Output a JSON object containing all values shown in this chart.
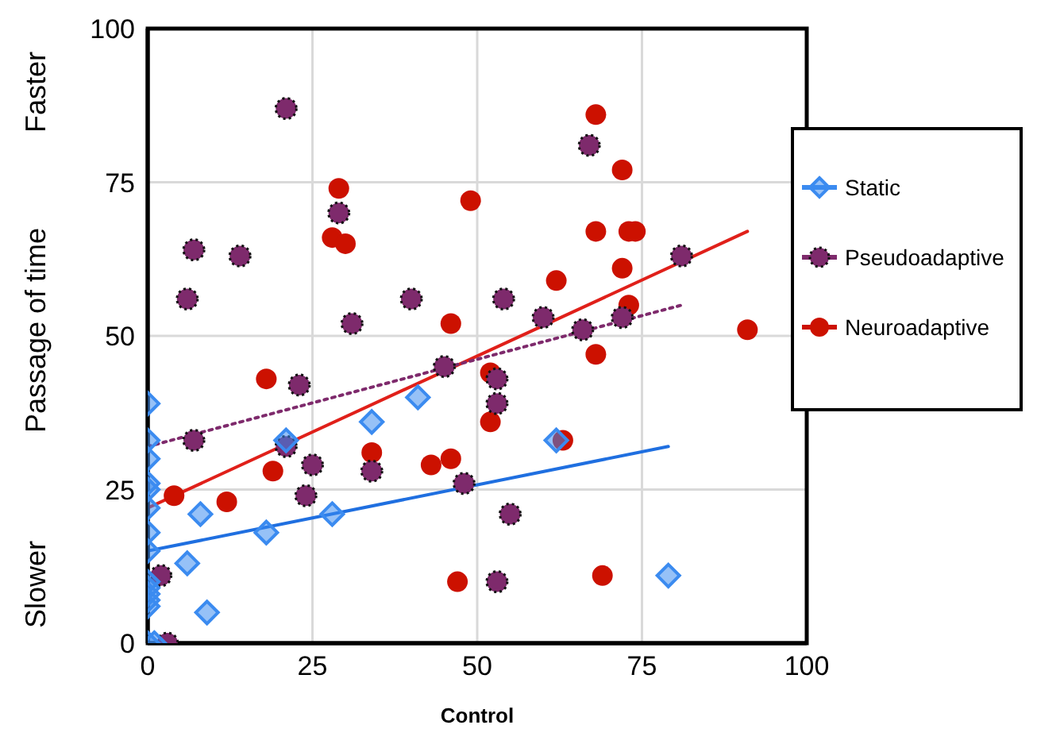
{
  "chart_data": {
    "type": "scatter",
    "xlabel": "Control",
    "ylabel": "Passage of time",
    "annotations": [
      "Faster",
      "Slower"
    ],
    "xlim": [
      0,
      100
    ],
    "xticks": [
      0,
      25,
      50,
      75,
      100
    ],
    "ylim": [
      0,
      100
    ],
    "yticks": [
      0,
      25,
      50,
      75,
      100
    ],
    "grid": true,
    "legend": "right",
    "series": [
      {
        "name": "Static",
        "color": "#3b8bf0",
        "marker": "diamond",
        "x": [
          0,
          0,
          0,
          0,
          0,
          0,
          0,
          0,
          0,
          0,
          0,
          0,
          0,
          0,
          1,
          21,
          8,
          6,
          9,
          18,
          28,
          34,
          41,
          62,
          79
        ],
        "values": [
          39,
          33,
          30,
          26,
          25,
          22,
          18,
          15,
          10,
          9,
          8,
          7,
          6,
          0,
          0,
          33,
          21,
          13,
          5,
          18,
          21,
          36,
          40,
          33,
          11
        ]
      },
      {
        "name": "Pseudoadaptive",
        "color": "#7e2a6c",
        "marker": "circle",
        "x": [
          21,
          29,
          7,
          14,
          6,
          31,
          40,
          67,
          81,
          54,
          60,
          66,
          72,
          53,
          53,
          45,
          48,
          55,
          53,
          23,
          7,
          21,
          25,
          34,
          24,
          2,
          3
        ],
        "values": [
          87,
          70,
          64,
          63,
          56,
          52,
          56,
          81,
          63,
          56,
          53,
          51,
          53,
          43,
          39,
          45,
          26,
          21,
          10,
          42,
          33,
          32,
          29,
          28,
          24,
          11,
          0
        ]
      },
      {
        "name": "Neuroadaptive",
        "color": "#cc1100",
        "marker": "circle",
        "x": [
          29,
          28,
          30,
          46,
          49,
          68,
          72,
          68,
          73,
          74,
          72,
          62,
          73,
          91,
          68,
          52,
          52,
          63,
          46,
          47,
          69,
          18,
          34,
          19,
          43,
          4,
          12
        ],
        "values": [
          74,
          66,
          65,
          52,
          72,
          86,
          77,
          67,
          67,
          67,
          61,
          59,
          55,
          51,
          47,
          44,
          36,
          33,
          30,
          10,
          11,
          43,
          31,
          28,
          29,
          24,
          23
        ]
      },
      {
        "type": "line",
        "color": "#1f6fe0",
        "line_style": "solid",
        "x": [
          0,
          79
        ],
        "values": [
          15,
          32
        ]
      },
      {
        "type": "line",
        "color": "#7e2a6c",
        "line_style": "dotted",
        "x": [
          0,
          81
        ],
        "values": [
          32,
          55
        ]
      },
      {
        "type": "line",
        "color": "#e0201a",
        "line_style": "solid",
        "x": [
          0,
          91
        ],
        "values": [
          22,
          67
        ]
      }
    ]
  }
}
